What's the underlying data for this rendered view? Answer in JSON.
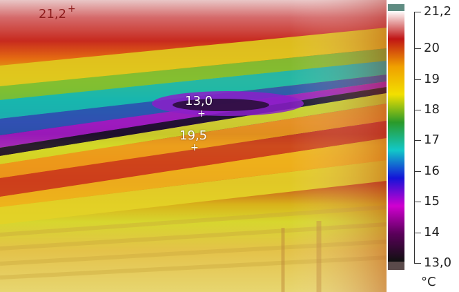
{
  "thermal_image": {
    "description_icon": "thermal-camera-image",
    "spots": [
      {
        "id": "spot-max",
        "label": "21,2"
      },
      {
        "id": "spot-cold",
        "label": "13,0"
      },
      {
        "id": "spot-warm",
        "label": "19,5"
      }
    ]
  },
  "scale": {
    "unit": "°C",
    "min": 13.0,
    "max": 21.2,
    "min_label": "13,0",
    "max_label": "21,2",
    "ticks": [
      "20",
      "19",
      "18",
      "17",
      "16",
      "15",
      "14"
    ],
    "tick_values": [
      20,
      19,
      18,
      17,
      16,
      15,
      14
    ],
    "colors": [
      "#ffffff",
      "#c01515",
      "#f0a000",
      "#f2e000",
      "#2a9a2a",
      "#12c8c8",
      "#1414d8",
      "#d000d0",
      "#5a005a",
      "#101010"
    ]
  }
}
